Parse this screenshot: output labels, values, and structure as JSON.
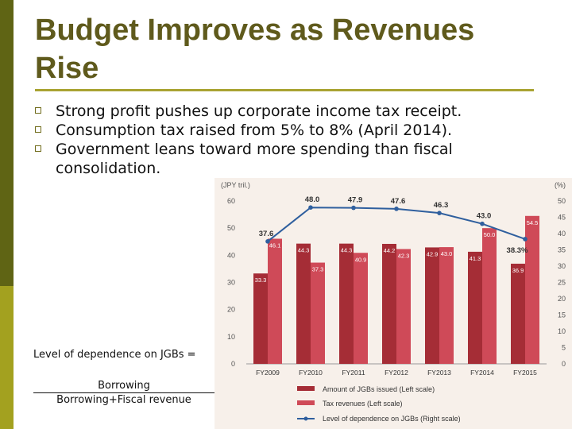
{
  "title": "Budget Improves as Revenues Rise",
  "bullets": [
    "Strong profit pushes up corporate income tax receipt.",
    "Consumption tax raised from 5% to 8% (April 2014).",
    "Government leans toward more spending than fiscal consolidation."
  ],
  "formula": {
    "label": "Level of dependence on JGBs =",
    "numerator": "Borrowing",
    "denominator": "Borrowing+Fiscal revenue"
  },
  "colors": {
    "jgb_bar": "#a52d36",
    "tax_bar": "#cf4a58",
    "line": "#2f5f9e",
    "title": "#5f5a1c"
  },
  "chart_data": {
    "type": "bar",
    "categories": [
      "FY2009",
      "FY2010",
      "FY2011",
      "FY2012",
      "FY2013",
      "FY2014",
      "FY2015"
    ],
    "left_unit": "(JPY tril.)",
    "right_unit": "(%)",
    "left_ylim": [
      0,
      60
    ],
    "left_ticks": [
      "0",
      "10",
      "20",
      "30",
      "40",
      "50",
      "60"
    ],
    "right_ylim": [
      0,
      50
    ],
    "right_ticks": [
      "0",
      "5",
      "10",
      "15",
      "20",
      "25",
      "30",
      "35",
      "40",
      "45",
      "50"
    ],
    "series": [
      {
        "name": "Amount of JGBs issued (Left scale)",
        "type": "bar",
        "values": [
          33.3,
          44.3,
          44.3,
          44.2,
          42.9,
          41.3,
          36.9
        ],
        "labels": [
          "33.3",
          "44.3",
          "44.3",
          "44.2",
          "42.9",
          "41.3",
          "36.9"
        ]
      },
      {
        "name": "Tax revenues (Left scale)",
        "type": "bar",
        "values": [
          46.1,
          37.3,
          40.9,
          42.3,
          43.0,
          50.0,
          54.5
        ],
        "labels": [
          "46.1",
          "37.3",
          "40.9",
          "42.3",
          "43.0",
          "50.0",
          "54.5"
        ]
      },
      {
        "name": "Level of dependence on JGBs (Right scale)",
        "type": "line",
        "values": [
          37.6,
          48.0,
          47.9,
          47.6,
          46.3,
          43.0,
          38.3
        ],
        "labels": [
          "37.6",
          "48.0",
          "47.9",
          "47.6",
          "46.3",
          "43.0",
          "38.3%"
        ]
      }
    ]
  }
}
